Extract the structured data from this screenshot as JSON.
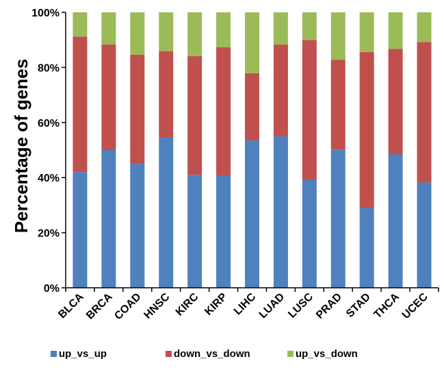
{
  "chart_data": {
    "type": "bar",
    "stacked": true,
    "title": "",
    "xlabel": "",
    "ylabel": "Percentage of genes",
    "ylim": [
      0,
      100
    ],
    "y_ticks": [
      "0%",
      "20%",
      "40%",
      "60%",
      "80%",
      "100%"
    ],
    "categories": [
      "BLCA",
      "BRCA",
      "COAD",
      "HNSC",
      "KIRC",
      "KIRP",
      "LIHC",
      "LUAD",
      "LUSC",
      "PRAD",
      "STAD",
      "THCA",
      "UCEC"
    ],
    "series": [
      {
        "name": "up_vs_up",
        "color": "#4f81bd",
        "values": [
          42.0,
          50.0,
          45.0,
          54.5,
          41.0,
          40.8,
          53.5,
          55.0,
          39.3,
          50.2,
          29.0,
          48.5,
          38.2
        ]
      },
      {
        "name": "down_vs_down",
        "color": "#c0504d",
        "values": [
          49.2,
          38.3,
          39.6,
          31.4,
          43.1,
          46.5,
          24.4,
          33.3,
          50.7,
          32.6,
          56.6,
          38.2,
          51.0
        ]
      },
      {
        "name": "up_vs_down",
        "color": "#9bbb59",
        "values": [
          8.8,
          11.7,
          15.4,
          14.1,
          15.9,
          12.7,
          22.1,
          11.7,
          10.0,
          17.2,
          14.4,
          13.3,
          10.8
        ]
      }
    ],
    "legend_position": "bottom",
    "grid": false
  }
}
